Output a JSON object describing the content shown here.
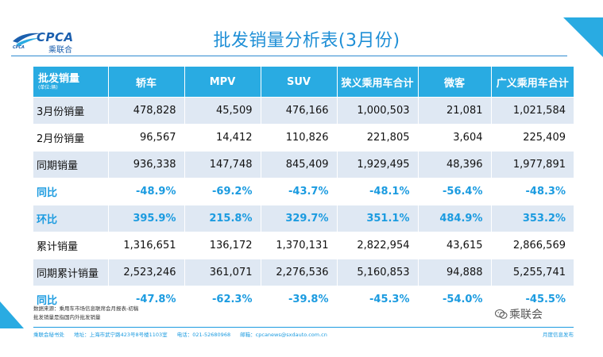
{
  "logo": {
    "brand": "CPCA",
    "cn": "乘联合",
    "en": "CPCA"
  },
  "title": "批发销量分析表(3月份)",
  "table": {
    "header_label": "批发销量",
    "header_unit": "(单位:辆)",
    "columns": [
      "轿车",
      "MPV",
      "SUV",
      "狭义乘用车合计",
      "微客",
      "广义乘用车合计"
    ],
    "rows": [
      {
        "label": "3月份销量",
        "values": [
          "478,828",
          "45,509",
          "476,166",
          "1,000,503",
          "21,081",
          "1,021,584"
        ]
      },
      {
        "label": "2月份销量",
        "values": [
          "96,567",
          "14,412",
          "110,826",
          "221,805",
          "3,604",
          "225,409"
        ]
      },
      {
        "label": "同期销量",
        "values": [
          "936,338",
          "147,748",
          "845,409",
          "1,929,495",
          "48,396",
          "1,977,891"
        ]
      },
      {
        "label": "同比",
        "values": [
          "-48.9%",
          "-69.2%",
          "-43.7%",
          "-48.1%",
          "-56.4%",
          "-48.3%"
        ]
      },
      {
        "label": "环比",
        "values": [
          "395.9%",
          "215.8%",
          "329.7%",
          "351.1%",
          "484.9%",
          "353.2%"
        ]
      },
      {
        "label": "累计销量",
        "values": [
          "1,316,651",
          "136,172",
          "1,370,131",
          "2,822,954",
          "43,615",
          "2,866,569"
        ]
      },
      {
        "label": "同期累计销量",
        "values": [
          "2,523,246",
          "361,071",
          "2,276,536",
          "5,160,853",
          "94,888",
          "5,255,741"
        ]
      },
      {
        "label": "同比",
        "values": [
          "-47.8%",
          "-62.3%",
          "-39.8%",
          "-45.3%",
          "-54.0%",
          "-45.5%"
        ]
      }
    ]
  },
  "notes": {
    "source": "数据来源：乘用车市场信息联席会月报表-初稿",
    "definition": "批发销量是指国内外批发销量"
  },
  "watermark": "乘联会",
  "footer": {
    "org": "乘联会秘书处",
    "address": "地址：上海市武宁路423号8号楼1103室",
    "phone": "电话：021-52680968",
    "email": "邮箱：cpcanews@sxdauto.com.cn",
    "right": "月度信息发布"
  },
  "colors": {
    "accent": "#29abe2",
    "title": "#1f8fd6",
    "band": "#dfe8f3",
    "highlight_text": "#1b9be0"
  }
}
